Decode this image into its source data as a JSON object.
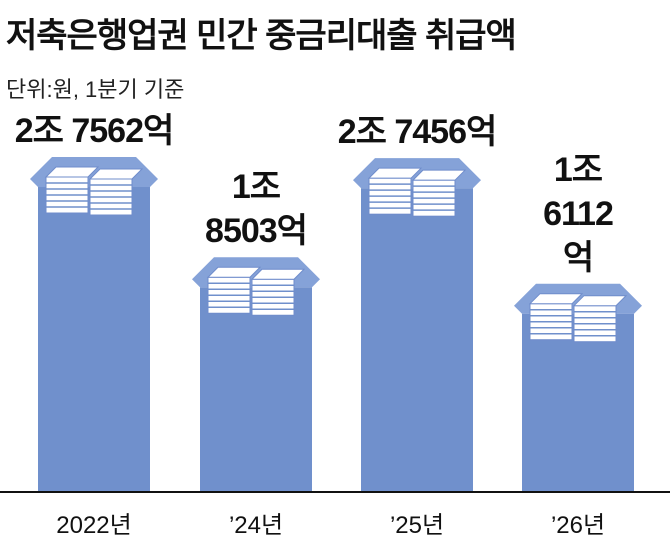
{
  "chart_data": {
    "type": "bar",
    "title": "저축은행업권 민간 중금리대출 취급액",
    "subtitle": "단위:원, 1분기 기준",
    "categories": [
      "2022년",
      "’24년",
      "’25년",
      "’26년"
    ],
    "values": [
      27562,
      18503,
      27456,
      16112
    ],
    "value_labels": [
      "2조 7562억",
      "1조\n8503억",
      "2조 7456억",
      "1조\n6112억"
    ],
    "color": "#7090cc"
  }
}
